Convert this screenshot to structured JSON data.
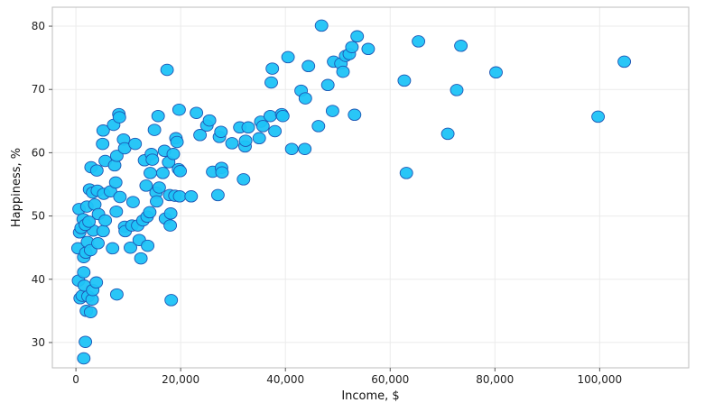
{
  "chart_data": {
    "type": "scatter",
    "title": "",
    "xlabel": "Income, $",
    "ylabel": "Happiness, %",
    "xlim": [
      -4500,
      117000
    ],
    "ylim": [
      26,
      83
    ],
    "x_ticks": [
      0,
      20000,
      40000,
      60000,
      80000,
      100000
    ],
    "x_tick_labels": [
      "0",
      "20,000",
      "40,000",
      "60,000",
      "80,000",
      "100,000"
    ],
    "y_ticks": [
      30,
      40,
      50,
      60,
      70,
      80
    ],
    "y_tick_labels": [
      "30",
      "40",
      "50",
      "60",
      "70",
      "80"
    ],
    "grid": true,
    "point_color": "#1ec3f7",
    "point_stroke": "#1e56b4",
    "points": [
      [
        1500,
        27.5
      ],
      [
        1800,
        30.1
      ],
      [
        500,
        39.8
      ],
      [
        800,
        37
      ],
      [
        1200,
        37.4
      ],
      [
        1500,
        41.1
      ],
      [
        1600,
        39
      ],
      [
        2000,
        35
      ],
      [
        2300,
        37.3
      ],
      [
        2800,
        34.8
      ],
      [
        3100,
        36.8
      ],
      [
        3200,
        38.3
      ],
      [
        3900,
        39.5
      ],
      [
        7800,
        37.6
      ],
      [
        18200,
        36.7
      ],
      [
        400,
        44.9
      ],
      [
        700,
        47.4
      ],
      [
        1000,
        48.1
      ],
      [
        1500,
        43.5
      ],
      [
        1900,
        44.2
      ],
      [
        2200,
        45.9
      ],
      [
        2800,
        44.6
      ],
      [
        3300,
        47.7
      ],
      [
        4200,
        45.7
      ],
      [
        5200,
        47.6
      ],
      [
        7000,
        44.9
      ],
      [
        600,
        51.1
      ],
      [
        1400,
        49.5
      ],
      [
        1800,
        48.6
      ],
      [
        2100,
        51.5
      ],
      [
        2500,
        49.1
      ],
      [
        2600,
        54.2
      ],
      [
        3200,
        53.7
      ],
      [
        3600,
        51.8
      ],
      [
        4100,
        54
      ],
      [
        4300,
        50.3
      ],
      [
        5300,
        53.5
      ],
      [
        5600,
        49.3
      ],
      [
        6600,
        53.9
      ],
      [
        7700,
        50.7
      ],
      [
        8400,
        53
      ],
      [
        2900,
        57.7
      ],
      [
        4000,
        57.2
      ],
      [
        5100,
        61.4
      ],
      [
        5600,
        58.7
      ],
      [
        5200,
        63.5
      ],
      [
        7400,
        58
      ],
      [
        7800,
        59.5
      ],
      [
        7200,
        64.4
      ],
      [
        8200,
        66.1
      ],
      [
        8300,
        65.6
      ],
      [
        9100,
        62.1
      ],
      [
        9300,
        60.7
      ],
      [
        7600,
        55.3
      ],
      [
        9300,
        48.3
      ],
      [
        9400,
        47.6
      ],
      [
        10400,
        45
      ],
      [
        10700,
        48.5
      ],
      [
        10900,
        52.2
      ],
      [
        11300,
        61.4
      ],
      [
        11800,
        48.5
      ],
      [
        12100,
        46.2
      ],
      [
        12400,
        43.3
      ],
      [
        12800,
        49.3
      ],
      [
        13100,
        58.8
      ],
      [
        13400,
        54.8
      ],
      [
        13600,
        49.9
      ],
      [
        13700,
        45.3
      ],
      [
        14100,
        50.6
      ],
      [
        14200,
        56.8
      ],
      [
        14400,
        59.8
      ],
      [
        14600,
        58.9
      ],
      [
        15000,
        63.6
      ],
      [
        15300,
        53.7
      ],
      [
        15400,
        52.3
      ],
      [
        15700,
        65.8
      ],
      [
        15900,
        54.5
      ],
      [
        16600,
        56.8
      ],
      [
        16900,
        60.3
      ],
      [
        17100,
        49.6
      ],
      [
        17400,
        73.1
      ],
      [
        17700,
        58.5
      ],
      [
        17900,
        53.3
      ],
      [
        18000,
        48.5
      ],
      [
        18100,
        50.4
      ],
      [
        18600,
        59.8
      ],
      [
        18900,
        53.2
      ],
      [
        19100,
        62.3
      ],
      [
        19300,
        61.7
      ],
      [
        19600,
        57.4
      ],
      [
        19700,
        66.8
      ],
      [
        19800,
        53.1
      ],
      [
        19900,
        57.1
      ],
      [
        22000,
        53.1
      ],
      [
        23000,
        66.3
      ],
      [
        23700,
        62.8
      ],
      [
        25000,
        64.3
      ],
      [
        25500,
        65.1
      ],
      [
        26100,
        57
      ],
      [
        27100,
        53.3
      ],
      [
        27400,
        62.5
      ],
      [
        27700,
        63.3
      ],
      [
        27800,
        57.6
      ],
      [
        27900,
        56.9
      ],
      [
        29800,
        61.5
      ],
      [
        31300,
        64
      ],
      [
        32000,
        55.8
      ],
      [
        32300,
        61
      ],
      [
        32400,
        61.9
      ],
      [
        32900,
        64
      ],
      [
        35000,
        62.3
      ],
      [
        35300,
        64.9
      ],
      [
        35700,
        64.2
      ],
      [
        37100,
        65.8
      ],
      [
        37300,
        71.1
      ],
      [
        37500,
        73.3
      ],
      [
        38000,
        63.4
      ],
      [
        39300,
        66.1
      ],
      [
        39500,
        65.8
      ],
      [
        40500,
        75.1
      ],
      [
        41200,
        60.6
      ],
      [
        43000,
        69.8
      ],
      [
        43700,
        60.6
      ],
      [
        43800,
        68.6
      ],
      [
        44400,
        73.7
      ],
      [
        46300,
        64.2
      ],
      [
        46900,
        80.1
      ],
      [
        48100,
        70.7
      ],
      [
        49000,
        66.6
      ],
      [
        49200,
        74.4
      ],
      [
        50600,
        74.1
      ],
      [
        51000,
        72.8
      ],
      [
        51500,
        75.3
      ],
      [
        52200,
        75.6
      ],
      [
        52700,
        76.7
      ],
      [
        53200,
        66
      ],
      [
        53700,
        78.4
      ],
      [
        55800,
        76.4
      ],
      [
        62700,
        71.4
      ],
      [
        63100,
        56.8
      ],
      [
        65400,
        77.6
      ],
      [
        71000,
        63
      ],
      [
        72700,
        69.9
      ],
      [
        73500,
        76.9
      ],
      [
        80200,
        72.7
      ],
      [
        99700,
        65.7
      ],
      [
        104700,
        74.4
      ]
    ]
  }
}
